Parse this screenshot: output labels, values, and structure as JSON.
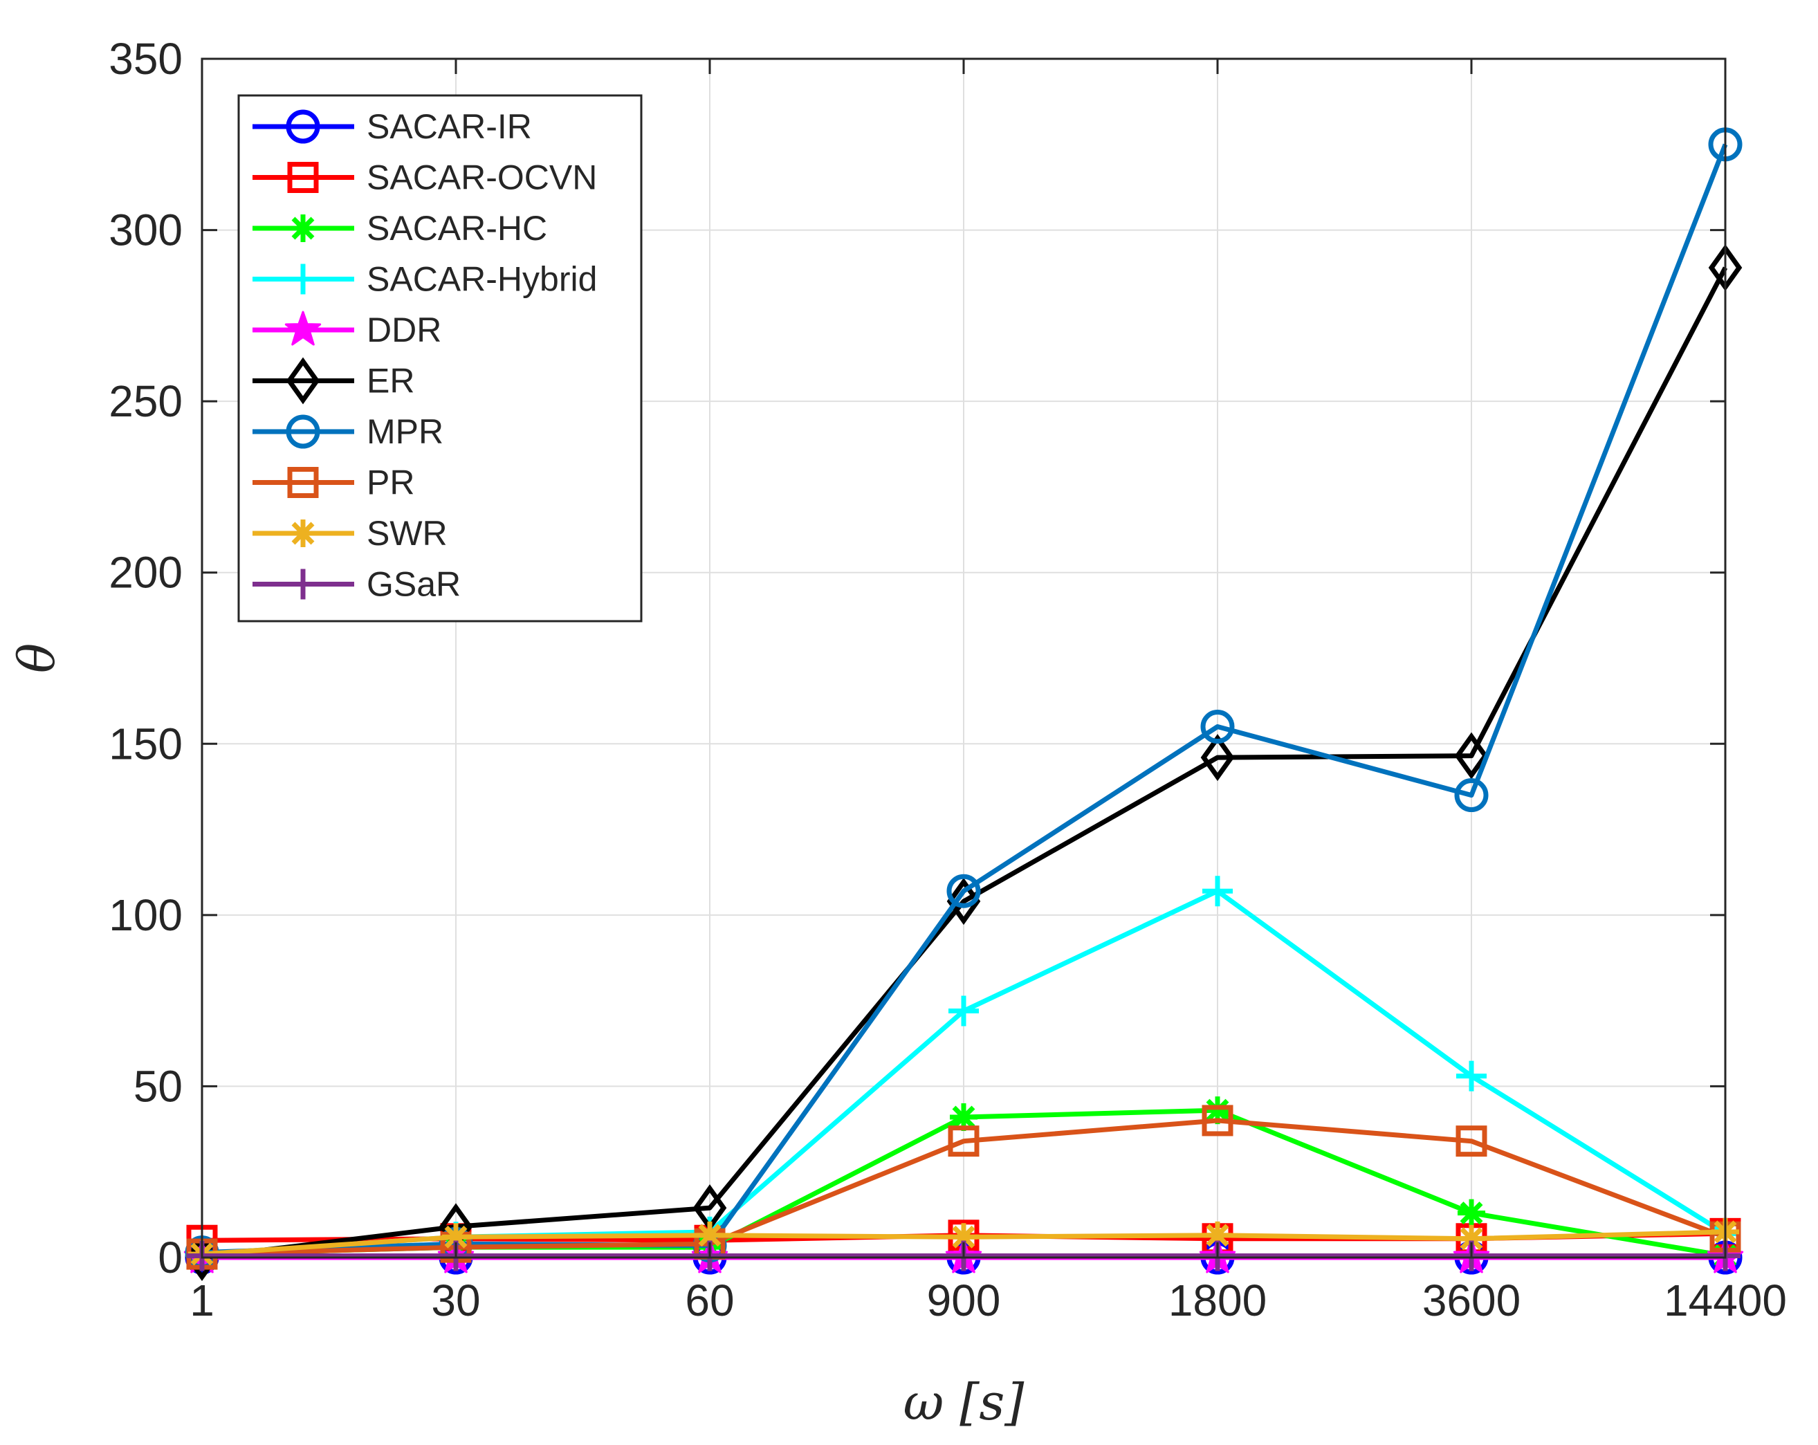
{
  "chart_data": {
    "type": "line",
    "title": "",
    "xlabel": "ω [s]",
    "ylabel": "θ",
    "categories": [
      "1",
      "30",
      "60",
      "900",
      "1800",
      "3600",
      "14400"
    ],
    "ylim": [
      0,
      350
    ],
    "yticks": [
      0,
      50,
      100,
      150,
      200,
      250,
      300,
      350
    ],
    "grid": true,
    "legend_position": "top-left",
    "series": [
      {
        "name": "SACAR-IR",
        "color": "#0000ff",
        "marker": "circle",
        "values": [
          0,
          0,
          0,
          0,
          0,
          0,
          0
        ]
      },
      {
        "name": "SACAR-OCVN",
        "color": "#ff0000",
        "marker": "square",
        "values": [
          5,
          5.5,
          5,
          6.5,
          5.5,
          5.5,
          7
        ]
      },
      {
        "name": "SACAR-HC",
        "color": "#00ff00",
        "marker": "asterisk",
        "values": [
          1,
          3,
          3,
          41,
          43,
          13,
          0.5
        ]
      },
      {
        "name": "SACAR-Hybrid",
        "color": "#00ffff",
        "marker": "plus",
        "values": [
          1,
          6,
          7.5,
          72,
          107,
          53,
          7
        ]
      },
      {
        "name": "DDR",
        "color": "#ff00ff",
        "marker": "pentagram",
        "values": [
          0,
          0,
          0,
          0,
          0,
          0,
          0
        ]
      },
      {
        "name": "ER",
        "color": "#000000",
        "marker": "diamond",
        "values": [
          0,
          9,
          14.5,
          104,
          146,
          146.5,
          289
        ]
      },
      {
        "name": "MPR",
        "color": "#0072bd",
        "marker": "circle",
        "values": [
          1.5,
          4,
          3.5,
          107,
          155,
          135,
          325
        ]
      },
      {
        "name": "PR",
        "color": "#d95319",
        "marker": "square",
        "values": [
          1,
          3,
          4,
          34,
          40,
          34,
          6
        ]
      },
      {
        "name": "SWR",
        "color": "#edb120",
        "marker": "asterisk",
        "values": [
          1,
          6,
          6.5,
          6,
          6.5,
          5.5,
          7.5
        ]
      },
      {
        "name": "GSaR",
        "color": "#7e2f8e",
        "marker": "plus",
        "values": [
          0.5,
          0.5,
          0.5,
          0.5,
          0.5,
          0.5,
          0.5
        ]
      }
    ]
  }
}
